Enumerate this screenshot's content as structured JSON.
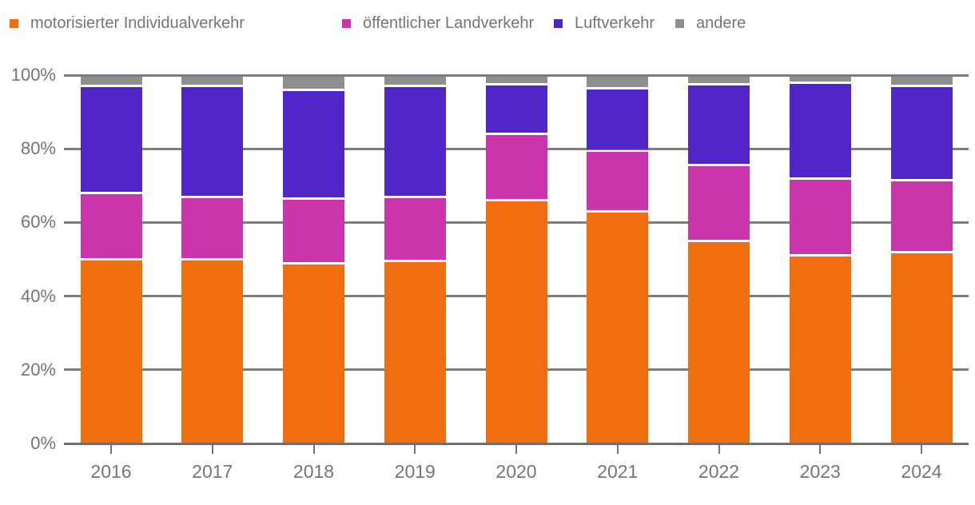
{
  "chart_data": {
    "type": "bar",
    "stacked": true,
    "percent": true,
    "title": "",
    "xlabel": "",
    "ylabel": "",
    "categories": [
      "2016",
      "2017",
      "2018",
      "2019",
      "2020",
      "2021",
      "2022",
      "2023",
      "2024"
    ],
    "series": [
      {
        "name": "motorisierter Individualverkehr",
        "color": "#F06E0F",
        "values": [
          50,
          50,
          49,
          49.5,
          66,
          63,
          55,
          51,
          52
        ]
      },
      {
        "name": "öffentlicher Landverkehr",
        "color": "#CA35AC",
        "values": [
          18,
          17,
          17.5,
          17.5,
          18,
          16.5,
          20.5,
          21,
          19.5
        ]
      },
      {
        "name": "Luftverkehr",
        "color": "#5126C9",
        "values": [
          29,
          30,
          29.5,
          30,
          13.5,
          17,
          22,
          26,
          25.5
        ]
      },
      {
        "name": "andere",
        "color": "#8F8F8F",
        "values": [
          3,
          3,
          4,
          3,
          2.5,
          3.5,
          2.5,
          2,
          3
        ]
      }
    ],
    "y_ticks": [
      "0%",
      "20%",
      "40%",
      "60%",
      "80%",
      "100%"
    ],
    "ylim": [
      0,
      100
    ],
    "grid": true,
    "legend_position": "top"
  },
  "colors": {
    "axis_text": "#757575",
    "gridline": "#7d7d7d",
    "background": "#ffffff"
  }
}
